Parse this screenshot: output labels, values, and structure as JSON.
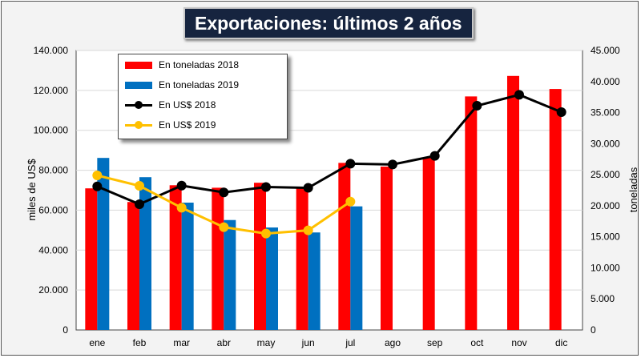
{
  "chart_data": {
    "type": "bar",
    "title": "Exportaciones: últimos 2 años",
    "categories": [
      "ene",
      "feb",
      "mar",
      "abr",
      "may",
      "jun",
      "jul",
      "ago",
      "sep",
      "oct",
      "nov",
      "dic"
    ],
    "ylabel": "miles de US$",
    "y2label": "toneladas",
    "ylim": [
      0,
      140000
    ],
    "y2lim": [
      0,
      45000
    ],
    "yticks": [
      "0",
      "20.000",
      "40.000",
      "60.000",
      "80.000",
      "100.000",
      "120.000",
      "140.000"
    ],
    "y2ticks": [
      "0",
      "5.000",
      "10.000",
      "15.000",
      "20.000",
      "25.000",
      "30.000",
      "35.000",
      "40.000",
      "45.000"
    ],
    "grid": true,
    "legend_position": "top-left",
    "series": [
      {
        "name": "En toneladas 2018",
        "kind": "bar",
        "axis": "right",
        "color": "#ff0000",
        "values": [
          22800,
          20600,
          23300,
          22900,
          23700,
          22800,
          26900,
          26300,
          27700,
          37600,
          40900,
          38800
        ]
      },
      {
        "name": "En toneladas 2019",
        "kind": "bar",
        "axis": "right",
        "color": "#0070c0",
        "values": [
          27700,
          24600,
          20500,
          17700,
          16500,
          15700,
          19900,
          null,
          null,
          null,
          null,
          null
        ]
      },
      {
        "name": "En US$ 2018",
        "kind": "line",
        "axis": "left",
        "color": "#000000",
        "values": [
          71900,
          63000,
          72300,
          68900,
          71600,
          71200,
          83300,
          82900,
          87200,
          112300,
          117800,
          109100
        ]
      },
      {
        "name": "En US$ 2019",
        "kind": "line",
        "axis": "left",
        "color": "#ffc000",
        "values": [
          77400,
          72200,
          61200,
          51500,
          48300,
          49900,
          64300,
          null,
          null,
          null,
          null,
          null
        ]
      }
    ]
  }
}
